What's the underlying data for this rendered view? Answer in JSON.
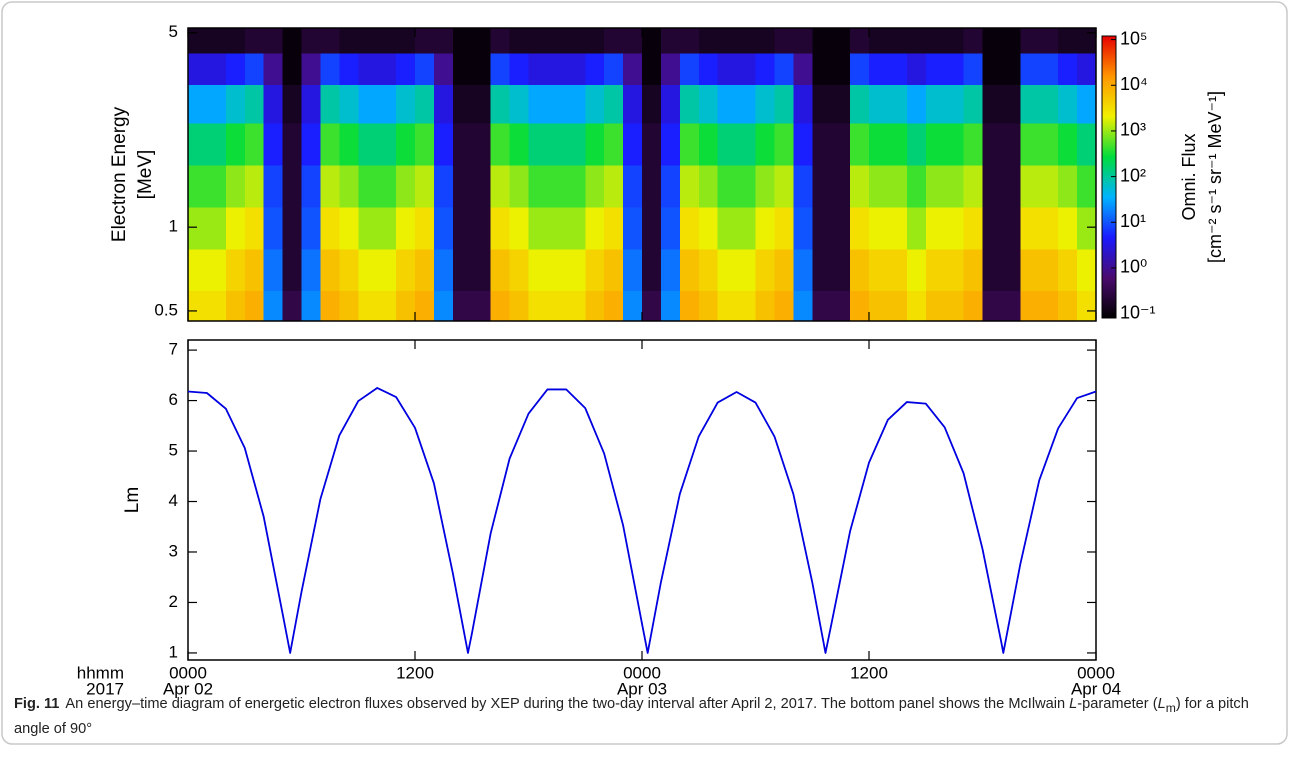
{
  "chart_data": [
    {
      "type": "heatmap",
      "ylabel": [
        "Electron Energy",
        "[MeV]"
      ],
      "y": [
        0.5,
        0.7,
        1.0,
        1.4,
        2.0,
        2.8,
        3.8,
        4.7
      ],
      "time_bins": [
        0,
        1,
        2,
        3,
        4,
        5,
        6,
        7,
        8,
        9,
        10,
        11,
        12,
        13,
        14,
        15,
        16,
        17,
        18,
        19,
        20,
        21,
        22,
        23,
        24,
        25,
        26,
        27,
        28,
        29,
        30,
        31,
        32,
        33,
        34,
        35,
        36,
        37,
        38,
        39,
        40,
        41,
        42,
        43,
        44,
        45,
        46,
        47,
        48
      ],
      "z": [
        [
          3000,
          3000,
          6000,
          9000,
          20,
          0.3,
          20,
          9000,
          6000,
          3000,
          3000,
          6000,
          9000,
          20,
          0.3,
          0.3,
          9000,
          6000,
          3000,
          3000,
          3000,
          6000,
          9000,
          20,
          0.3,
          20,
          9000,
          6000,
          3000,
          3000,
          6000,
          9000,
          20,
          0.3,
          0.3,
          9000,
          6000,
          6000,
          3000,
          6000,
          6000,
          9000,
          0.3,
          0.3,
          9000,
          9000,
          6000,
          3000
        ],
        [
          2000,
          2000,
          4000,
          6000,
          15,
          0.2,
          15,
          6000,
          4000,
          2000,
          2000,
          4000,
          6000,
          15,
          0.2,
          0.2,
          6000,
          4000,
          2000,
          2000,
          2000,
          4000,
          6000,
          15,
          0.2,
          15,
          6000,
          4000,
          2000,
          2000,
          4000,
          6000,
          15,
          0.2,
          0.2,
          6000,
          4000,
          4000,
          2000,
          4000,
          4000,
          6000,
          0.2,
          0.2,
          6000,
          6000,
          4000,
          2000
        ],
        [
          1000,
          1000,
          2000,
          3000,
          10,
          0.2,
          10,
          3000,
          2000,
          1000,
          1000,
          2000,
          3000,
          10,
          0.2,
          0.2,
          3000,
          2000,
          1000,
          1000,
          1000,
          2000,
          3000,
          10,
          0.2,
          10,
          3000,
          2000,
          1000,
          1000,
          2000,
          3000,
          10,
          0.2,
          0.2,
          3000,
          2000,
          2000,
          1000,
          2000,
          2000,
          3000,
          0.2,
          0.2,
          3000,
          3000,
          2000,
          1000
        ],
        [
          450,
          450,
          900,
          1300,
          8,
          0.2,
          8,
          1300,
          900,
          450,
          450,
          900,
          1300,
          8,
          0.2,
          0.2,
          1300,
          900,
          450,
          450,
          450,
          900,
          1300,
          8,
          0.2,
          8,
          1300,
          900,
          450,
          450,
          900,
          1300,
          8,
          0.2,
          0.2,
          1300,
          900,
          900,
          450,
          900,
          900,
          1300,
          0.2,
          0.2,
          1300,
          1300,
          900,
          450
        ],
        [
          150,
          150,
          300,
          450,
          5,
          0.2,
          5,
          450,
          300,
          150,
          150,
          300,
          450,
          5,
          0.2,
          0.2,
          450,
          300,
          150,
          150,
          150,
          300,
          450,
          5,
          0.2,
          5,
          450,
          300,
          150,
          150,
          300,
          450,
          5,
          0.2,
          0.2,
          450,
          300,
          300,
          150,
          300,
          300,
          450,
          0.2,
          0.2,
          450,
          450,
          300,
          150
        ],
        [
          30,
          30,
          60,
          90,
          3,
          0.15,
          3,
          90,
          60,
          30,
          30,
          60,
          90,
          3,
          0.15,
          0.15,
          90,
          60,
          30,
          30,
          30,
          60,
          90,
          3,
          0.15,
          3,
          90,
          60,
          30,
          30,
          60,
          90,
          3,
          0.15,
          0.15,
          90,
          60,
          60,
          30,
          60,
          60,
          90,
          0.15,
          0.15,
          90,
          90,
          60,
          30
        ],
        [
          3,
          3,
          5,
          8,
          1,
          0.1,
          1,
          8,
          5,
          3,
          3,
          5,
          8,
          1,
          0.1,
          0.1,
          8,
          5,
          3,
          3,
          3,
          5,
          8,
          1,
          0.1,
          1,
          8,
          5,
          3,
          3,
          5,
          8,
          1,
          0.1,
          0.1,
          8,
          5,
          5,
          3,
          5,
          5,
          8,
          0.1,
          0.1,
          8,
          8,
          5,
          3
        ],
        [
          0.15,
          0.15,
          0.15,
          0.2,
          0.2,
          0.1,
          0.2,
          0.2,
          0.15,
          0.15,
          0.15,
          0.15,
          0.2,
          0.2,
          0.1,
          0.1,
          0.2,
          0.15,
          0.15,
          0.15,
          0.15,
          0.15,
          0.2,
          0.2,
          0.1,
          0.2,
          0.2,
          0.15,
          0.15,
          0.15,
          0.15,
          0.2,
          0.2,
          0.1,
          0.1,
          0.2,
          0.15,
          0.15,
          0.15,
          0.15,
          0.15,
          0.2,
          0.1,
          0.1,
          0.2,
          0.2,
          0.15,
          0.15
        ]
      ],
      "xlim": [
        0,
        48
      ],
      "xticks": [
        0,
        12,
        24,
        36,
        48
      ],
      "ylim": [
        0.46,
        5.2
      ],
      "yscale": "log",
      "yticks": [
        0.5,
        1,
        5
      ],
      "colorbar": {
        "title": [
          "Omni. Flux",
          "[cm⁻² s⁻¹ sr⁻¹ MeV⁻¹]"
        ],
        "clim": [
          0.08,
          120000
        ],
        "scale": "log",
        "ticks": [
          {
            "value": 0.1,
            "label": "10⁻¹"
          },
          {
            "value": 1,
            "label": "10⁰"
          },
          {
            "value": 10,
            "label": "10¹"
          },
          {
            "value": 100,
            "label": "10²"
          },
          {
            "value": 1000,
            "label": "10³"
          },
          {
            "value": 10000,
            "label": "10⁴"
          },
          {
            "value": 100000,
            "label": "10⁵"
          }
        ],
        "colormap": [
          "#000000",
          "#4b0a6e",
          "#1a1aff",
          "#00b4ff",
          "#00dc3c",
          "#f0f000",
          "#ff9600",
          "#e60000"
        ]
      }
    },
    {
      "type": "line",
      "ylabel": "Lm",
      "x": [
        0,
        1,
        2,
        3,
        4,
        5,
        5.4,
        6,
        7,
        8,
        9,
        10,
        11,
        12,
        13,
        14,
        14.8,
        15,
        16,
        17,
        18,
        19,
        20,
        21,
        22,
        23,
        24,
        24.3,
        25,
        26,
        27,
        28,
        29,
        30,
        31,
        32,
        33,
        33.7,
        34,
        35,
        36,
        37,
        38,
        39,
        40,
        41,
        42,
        43,
        43.1,
        44,
        45,
        46,
        47,
        48
      ],
      "series": [
        {
          "color": "#0000e0",
          "values": [
            6.18,
            6.15,
            5.84,
            5.06,
            3.7,
            1.78,
            1.0,
            2.21,
            4.05,
            5.31,
            5.99,
            6.25,
            6.07,
            5.46,
            4.36,
            2.58,
            1.0,
            1.37,
            3.37,
            4.85,
            5.74,
            6.22,
            6.22,
            5.85,
            4.95,
            3.53,
            1.58,
            1.0,
            2.4,
            4.15,
            5.29,
            5.96,
            6.17,
            5.96,
            5.29,
            4.15,
            2.4,
            1.0,
            1.55,
            3.41,
            4.77,
            5.62,
            5.97,
            5.94,
            5.47,
            4.56,
            3.06,
            1.2,
            1.0,
            2.76,
            4.42,
            5.45,
            6.05,
            6.18
          ]
        }
      ],
      "xlim": [
        0,
        48
      ],
      "ylim": [
        0.86,
        7.2
      ],
      "yticks": [
        1,
        2,
        3,
        4,
        5,
        6,
        7
      ],
      "xticks": [
        {
          "value": 0,
          "label": "0000"
        },
        {
          "value": 12,
          "label": "1200"
        },
        {
          "value": 24,
          "label": "0000"
        },
        {
          "value": 36,
          "label": "1200"
        },
        {
          "value": 48,
          "label": "0000"
        }
      ],
      "xtick_dates": [
        {
          "value": 0,
          "label": "Apr 02"
        },
        {
          "value": 24,
          "label": "Apr 03"
        },
        {
          "value": 48,
          "label": "Apr 04"
        }
      ],
      "xaxis_labels": [
        "hhmm",
        "2017"
      ]
    }
  ],
  "caption": {
    "label": "Fig. 11",
    "parts": [
      "An energy–time diagram of energetic electron fluxes observed by XEP during the two-day interval after April 2, 2017. The bottom panel shows the McIlwain ",
      "L",
      "-parameter (",
      "L",
      "m",
      ") for a pitch angle of 90°"
    ]
  }
}
